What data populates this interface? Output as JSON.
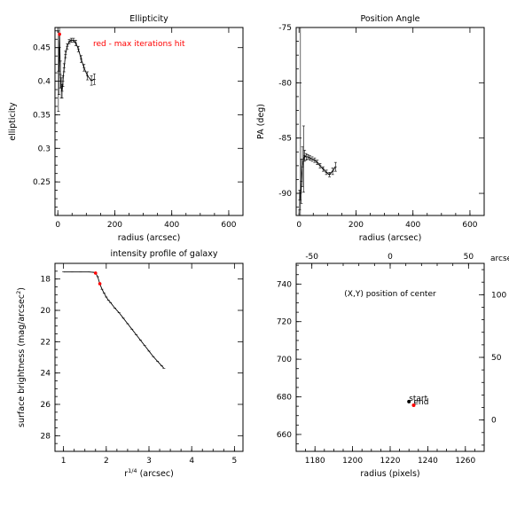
{
  "chart_data": [
    {
      "id": "ellipticity",
      "type": "line",
      "title": "Ellipticity",
      "xlabel": "radius (arcsec)",
      "ylabel": "ellipticity",
      "xlim": [
        -10,
        650
      ],
      "ylim": [
        0.2,
        0.48
      ],
      "xticks": [
        0,
        200,
        400,
        600
      ],
      "yticks": [
        0.25,
        0.3,
        0.35,
        0.4,
        0.45
      ],
      "annotation": "red - max iterations hit",
      "x": [
        2,
        4,
        6,
        9,
        12,
        15,
        18,
        22,
        27,
        33,
        40,
        47,
        55,
        63,
        72,
        82,
        92,
        104,
        118,
        128
      ],
      "y": [
        0.415,
        0.415,
        0.47,
        0.41,
        0.39,
        0.385,
        0.4,
        0.42,
        0.44,
        0.452,
        0.459,
        0.461,
        0.461,
        0.457,
        0.448,
        0.433,
        0.42,
        0.408,
        0.401,
        0.403
      ],
      "yerr": [
        0.06,
        0.035,
        0.02,
        0.02,
        0.015,
        0.01,
        0.008,
        0.006,
        0.005,
        0.004,
        0.003,
        0.003,
        0.003,
        0.004,
        0.004,
        0.005,
        0.005,
        0.006,
        0.007,
        0.008
      ],
      "flagged_x": [
        6
      ],
      "flagged_y": [
        0.47
      ],
      "flag_color": "#ff0000",
      "grid": false
    },
    {
      "id": "position_angle",
      "type": "line",
      "title": "Position Angle",
      "xlabel": "radius (arcsec)",
      "ylabel": "PA (deg)",
      "xlim": [
        -10,
        650
      ],
      "ylim": [
        -92,
        -75
      ],
      "xticks": [
        0,
        200,
        400,
        600
      ],
      "yticks": [
        -90,
        -85,
        -80,
        -75
      ],
      "x": [
        2,
        5,
        8,
        12,
        16,
        20,
        25,
        31,
        38,
        46,
        55,
        64,
        74,
        85,
        96,
        107,
        118,
        128
      ],
      "y": [
        -90.6,
        -89.9,
        -88.9,
        -87.6,
        -86.9,
        -86.6,
        -86.7,
        -86.7,
        -86.8,
        -86.9,
        -87.0,
        -87.2,
        -87.5,
        -87.8,
        -88.1,
        -88.3,
        -88.0,
        -87.6
      ],
      "yerr": [
        0.9,
        16,
        2.0,
        1.8,
        3.0,
        0.5,
        0.3,
        0.2,
        0.2,
        0.2,
        0.2,
        0.2,
        0.2,
        0.2,
        0.2,
        0.2,
        0.3,
        0.4
      ],
      "grid": false
    },
    {
      "id": "intensity_profile",
      "type": "line",
      "title": "intensity profile of galaxy",
      "xlabel": "r^{1/4} (arcsec)",
      "ylabel": "surface brightness (mag/arcsec²)",
      "xlim": [
        0.8,
        5.2
      ],
      "ylim": [
        29,
        17
      ],
      "yreversed": true,
      "xticks": [
        1,
        2,
        3,
        4,
        5
      ],
      "yticks": [
        18,
        20,
        22,
        24,
        26,
        28
      ],
      "x": [
        1.0,
        1.2,
        1.4,
        1.6,
        1.7,
        1.75,
        1.8,
        1.85,
        1.9,
        1.95,
        2.0,
        2.05,
        2.1,
        2.2,
        2.3,
        2.4,
        2.5,
        2.6,
        2.7,
        2.8,
        2.9,
        3.0,
        3.1,
        3.2,
        3.3,
        3.35
      ],
      "y": [
        17.55,
        17.55,
        17.55,
        17.55,
        17.57,
        17.62,
        17.85,
        18.3,
        18.65,
        18.9,
        19.15,
        19.35,
        19.5,
        19.85,
        20.15,
        20.5,
        20.85,
        21.2,
        21.55,
        21.9,
        22.25,
        22.6,
        22.95,
        23.25,
        23.55,
        23.7
      ],
      "flagged_x": [
        1.75,
        1.85
      ],
      "flagged_y": [
        17.62,
        18.3
      ],
      "flag_color": "#ff0000",
      "grid": false
    },
    {
      "id": "center_position",
      "type": "scatter",
      "title": "",
      "annotation": "(X,Y) position of center",
      "xlabel": "radius (pixels)",
      "xlim": [
        1170,
        1270
      ],
      "ylim": [
        651,
        751
      ],
      "xticks": [
        1180,
        1200,
        1220,
        1240,
        1260
      ],
      "yticks": [
        660,
        680,
        700,
        720,
        740
      ],
      "top_xlim": [
        -60,
        60
      ],
      "top_xticks": [
        -50,
        0,
        50
      ],
      "right_ylim": [
        -25,
        125
      ],
      "right_yticks": [
        0,
        50,
        100
      ],
      "right_axis_label": "arcsec",
      "points": [
        {
          "x": 1230,
          "y": 677.5,
          "label": "start",
          "color": "#000000"
        },
        {
          "x": 1232.5,
          "y": 675.5,
          "label": "end",
          "color": "#ff0000"
        }
      ],
      "grid": false
    }
  ]
}
